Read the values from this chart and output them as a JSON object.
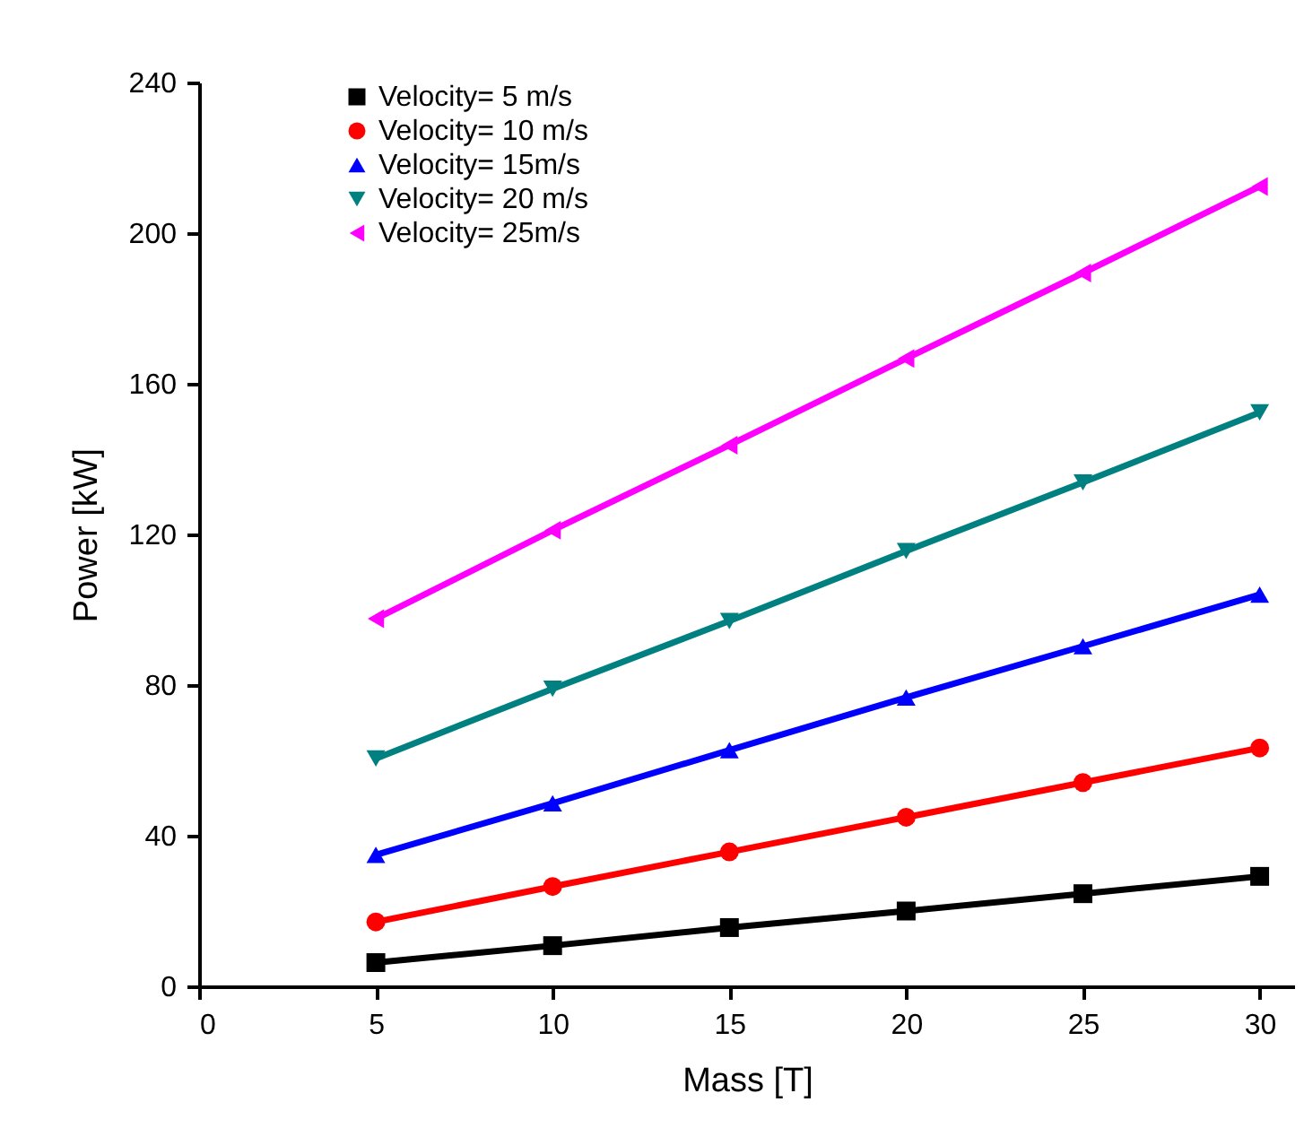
{
  "chart_data": {
    "type": "line",
    "xlabel": "Mass [T]",
    "ylabel": "Power [kW]",
    "x": [
      5,
      10,
      15,
      20,
      25,
      30
    ],
    "series": [
      {
        "name": "Velocity= 5 m/s",
        "color": "#000000",
        "marker": "square",
        "values": [
          6.3,
          10.8,
          15.6,
          20,
          24.6,
          29.2
        ]
      },
      {
        "name": "Velocity= 10 m/s",
        "color": "#ff0000",
        "marker": "circle",
        "values": [
          17.1,
          26.5,
          35.7,
          44.9,
          54.1,
          63.3
        ]
      },
      {
        "name": "Velocity= 15m/s",
        "color": "#0000ff",
        "marker": "triangle-up",
        "values": [
          34.9,
          48.6,
          62.7,
          76.7,
          90.3,
          104
        ]
      },
      {
        "name": "Velocity= 20 m/s",
        "color": "#008080",
        "marker": "triangle-down",
        "values": [
          60.5,
          79,
          97,
          115.6,
          133.8,
          152.4
        ]
      },
      {
        "name": "Velocity= 25m/s",
        "color": "#ff00ff",
        "marker": "triangle-left",
        "values": [
          97.6,
          121.1,
          143.7,
          166.7,
          189.4,
          212.4
        ]
      }
    ],
    "xlim": [
      0,
      31
    ],
    "xticks": [
      0,
      5,
      10,
      15,
      20,
      25,
      30
    ],
    "ylim": [
      0,
      240
    ],
    "yticks": [
      0,
      40,
      80,
      120,
      160,
      200,
      240
    ],
    "grid": false,
    "legend": "top left",
    "line_style": "solid"
  }
}
